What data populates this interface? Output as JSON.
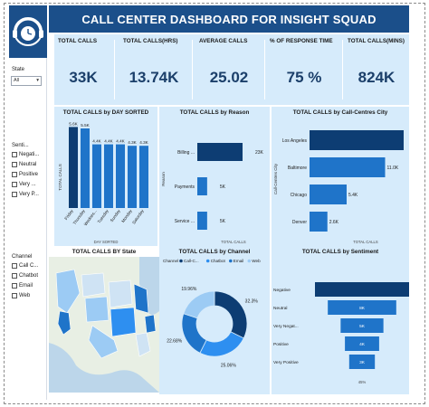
{
  "header": {
    "title": "CALL CENTER DASHBOARD FOR INSIGHT SQUAD"
  },
  "logo": {
    "icon": "headset-clock-icon"
  },
  "kpis": [
    {
      "label": "TOTAL CALLS",
      "value": "33K"
    },
    {
      "label": "TOTAL CALLS(HRS)",
      "value": "13.74K"
    },
    {
      "label": "AVERAGE CALLS",
      "value": "25.02"
    },
    {
      "label": "% OF RESPONSE TIME",
      "value": "75 %"
    },
    {
      "label": "TOTAL CALLS(MINS)",
      "value": "824K"
    }
  ],
  "slicers": {
    "state": {
      "title": "State",
      "value": "All"
    },
    "sentiment": {
      "title": "Senti...",
      "items": [
        "Negati...",
        "Neutral",
        "Positive",
        "Very ...",
        "Very P..."
      ]
    },
    "channel": {
      "title": "Channel",
      "items": [
        "Call C...",
        "Chatbot",
        "Email",
        "Web"
      ]
    }
  },
  "colors": {
    "dark": "#0d3d73",
    "mid": "#1f74c9",
    "bright": "#2e8ff0",
    "light": "#9ccbf4",
    "panel": "#d6ebfb",
    "header": "#1b4f8a"
  },
  "chart_data": [
    {
      "type": "bar",
      "title": "TOTAL CALLS by DAY SORTED",
      "ylabel": "TOTAL CALLS",
      "xlabel": "DAY SORTED",
      "categories": [
        "Friday",
        "Thursday",
        "Wednes...",
        "Tuesday",
        "Sunday",
        "Monday",
        "Saturday"
      ],
      "values": [
        5.6,
        5.5,
        4.4,
        4.4,
        4.4,
        4.3,
        4.3
      ],
      "data_labels": [
        "5.6K",
        "5.5K",
        "4.4K",
        "4.4K",
        "4.4K",
        "4.3K",
        "4.3K"
      ]
    },
    {
      "type": "bar",
      "orientation": "horizontal",
      "title": "TOTAL CALLS by Reason",
      "ylabel": "Reason",
      "xlabel": "TOTAL CALLS",
      "categories": [
        "Billing ...",
        "Payments",
        "Service ..."
      ],
      "values": [
        23,
        5,
        5
      ],
      "data_labels": [
        "23K",
        "5K",
        "5K"
      ]
    },
    {
      "type": "bar",
      "orientation": "horizontal",
      "title": "TOTAL CALLS by Call-Centres City",
      "ylabel": "Call-Centres City",
      "xlabel": "TOTAL CALLS",
      "categories": [
        "Los Angeles",
        "Baltimore",
        "Chicago",
        "Denver"
      ],
      "values": [
        13.7,
        11.0,
        5.4,
        2.6
      ],
      "data_labels": [
        "",
        "11.0K",
        "5.4K",
        "2.6K"
      ]
    },
    {
      "type": "map",
      "title": "TOTAL CALLS BY State"
    },
    {
      "type": "pie",
      "title": "TOTAL CALLS by Channel",
      "legend_title": "Channel",
      "legend": [
        "Call-C...",
        "Chatbot",
        "Email",
        "Web"
      ],
      "values": [
        32.3,
        25.06,
        22.68,
        19.96
      ],
      "data_labels": [
        "32.3%",
        "25.06%",
        "22.68%",
        "19.96%"
      ]
    },
    {
      "type": "funnel",
      "title": "TOTAL CALLS by Sentiment",
      "categories": [
        "Negative",
        "Neutral",
        "Very Negat...",
        "Positive",
        "Very Positive"
      ],
      "values": [
        11,
        8,
        5,
        4,
        3
      ],
      "data_labels": [
        "",
        "8K",
        "5K",
        "4K",
        "3K"
      ],
      "footer": "45%"
    }
  ]
}
